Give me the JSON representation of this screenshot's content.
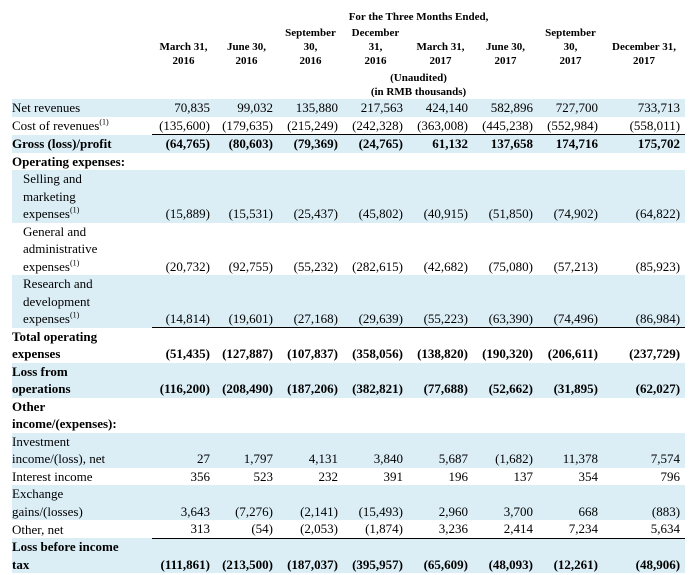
{
  "header": {
    "title": "For the Three Months Ended,",
    "columns": [
      [
        "March 31,",
        "2016"
      ],
      [
        "June 30,",
        "2016"
      ],
      [
        "September",
        "30,",
        "2016"
      ],
      [
        "December",
        "31,",
        "2016"
      ],
      [
        "March 31,",
        "2017"
      ],
      [
        "June 30,",
        "2017"
      ],
      [
        "September",
        "30,",
        "2017"
      ],
      [
        "December 31,",
        "2017"
      ]
    ],
    "notes": [
      "(Unaudited)",
      "(in RMB thousands)"
    ]
  },
  "table": {
    "rows": [
      {
        "label": [
          "Net revenues"
        ],
        "values": [
          "70,835",
          "99,032",
          "135,880",
          "217,563",
          "424,140",
          "582,896",
          "727,700",
          "733,713"
        ]
      },
      {
        "label": [
          "Cost of revenues"
        ],
        "note": "(1)",
        "values": [
          "(135,600)",
          "(179,635)",
          "(215,249)",
          "(242,328)",
          "(363,008)",
          "(445,238)",
          "(552,984)",
          "(558,011)"
        ]
      },
      {
        "label": [
          "Gross (loss)/profit"
        ],
        "bold": true,
        "rule_above": true,
        "values": [
          "(64,765)",
          "(80,603)",
          "(79,369)",
          "(24,765)",
          "61,132",
          "137,658",
          "174,716",
          "175,702"
        ]
      },
      {
        "label": [
          "Operating expenses:"
        ],
        "bold": true
      },
      {
        "label": [
          "Selling and",
          "marketing",
          "expenses"
        ],
        "note": "(1)",
        "indent": true,
        "values": [
          "(15,889)",
          "(15,531)",
          "(25,437)",
          "(45,802)",
          "(40,915)",
          "(51,850)",
          "(74,902)",
          "(64,822)"
        ]
      },
      {
        "label": [
          "General and",
          "administrative",
          "expenses"
        ],
        "note": "(1)",
        "indent": true,
        "values": [
          "(20,732)",
          "(92,755)",
          "(55,232)",
          "(282,615)",
          "(42,682)",
          "(75,080)",
          "(57,213)",
          "(85,923)"
        ]
      },
      {
        "label": [
          "Research and",
          "development",
          "expenses"
        ],
        "note": "(1)",
        "indent": true,
        "values": [
          "(14,814)",
          "(19,601)",
          "(27,168)",
          "(29,639)",
          "(55,223)",
          "(63,390)",
          "(74,496)",
          "(86,984)"
        ]
      },
      {
        "label": [
          "Total operating",
          "expenses"
        ],
        "bold": true,
        "rule_above": true,
        "values": [
          "(51,435)",
          "(127,887)",
          "(107,837)",
          "(358,056)",
          "(138,820)",
          "(190,320)",
          "(206,611)",
          "(237,729)"
        ]
      },
      {
        "label": [
          "Loss from",
          "operations"
        ],
        "bold": true,
        "values": [
          "(116,200)",
          "(208,490)",
          "(187,206)",
          "(382,821)",
          "(77,688)",
          "(52,662)",
          "(31,895)",
          "(62,027)"
        ]
      },
      {
        "label": [
          "Other",
          "income/(expenses):"
        ],
        "bold": true
      },
      {
        "label": [
          "Investment",
          "income/(loss), net"
        ],
        "values": [
          "27",
          "1,797",
          "4,131",
          "3,840",
          "5,687",
          "(1,682)",
          "11,378",
          "7,574"
        ]
      },
      {
        "label": [
          "Interest income"
        ],
        "values": [
          "356",
          "523",
          "232",
          "391",
          "196",
          "137",
          "354",
          "796"
        ]
      },
      {
        "label": [
          "Exchange",
          "gains/(losses)"
        ],
        "values": [
          "3,643",
          "(7,276)",
          "(2,141)",
          "(15,493)",
          "2,960",
          "3,700",
          "668",
          "(883)"
        ]
      },
      {
        "label": [
          "Other, net"
        ],
        "values": [
          "313",
          "(54)",
          "(2,053)",
          "(1,874)",
          "3,236",
          "2,414",
          "7,234",
          "5,634"
        ]
      },
      {
        "label": [
          "Loss before income",
          "tax"
        ],
        "bold": true,
        "rule_above": true,
        "values": [
          "(111,861)",
          "(213,500)",
          "(187,037)",
          "(395,957)",
          "(65,609)",
          "(48,093)",
          "(12,261)",
          "(48,906)"
        ]
      }
    ]
  }
}
